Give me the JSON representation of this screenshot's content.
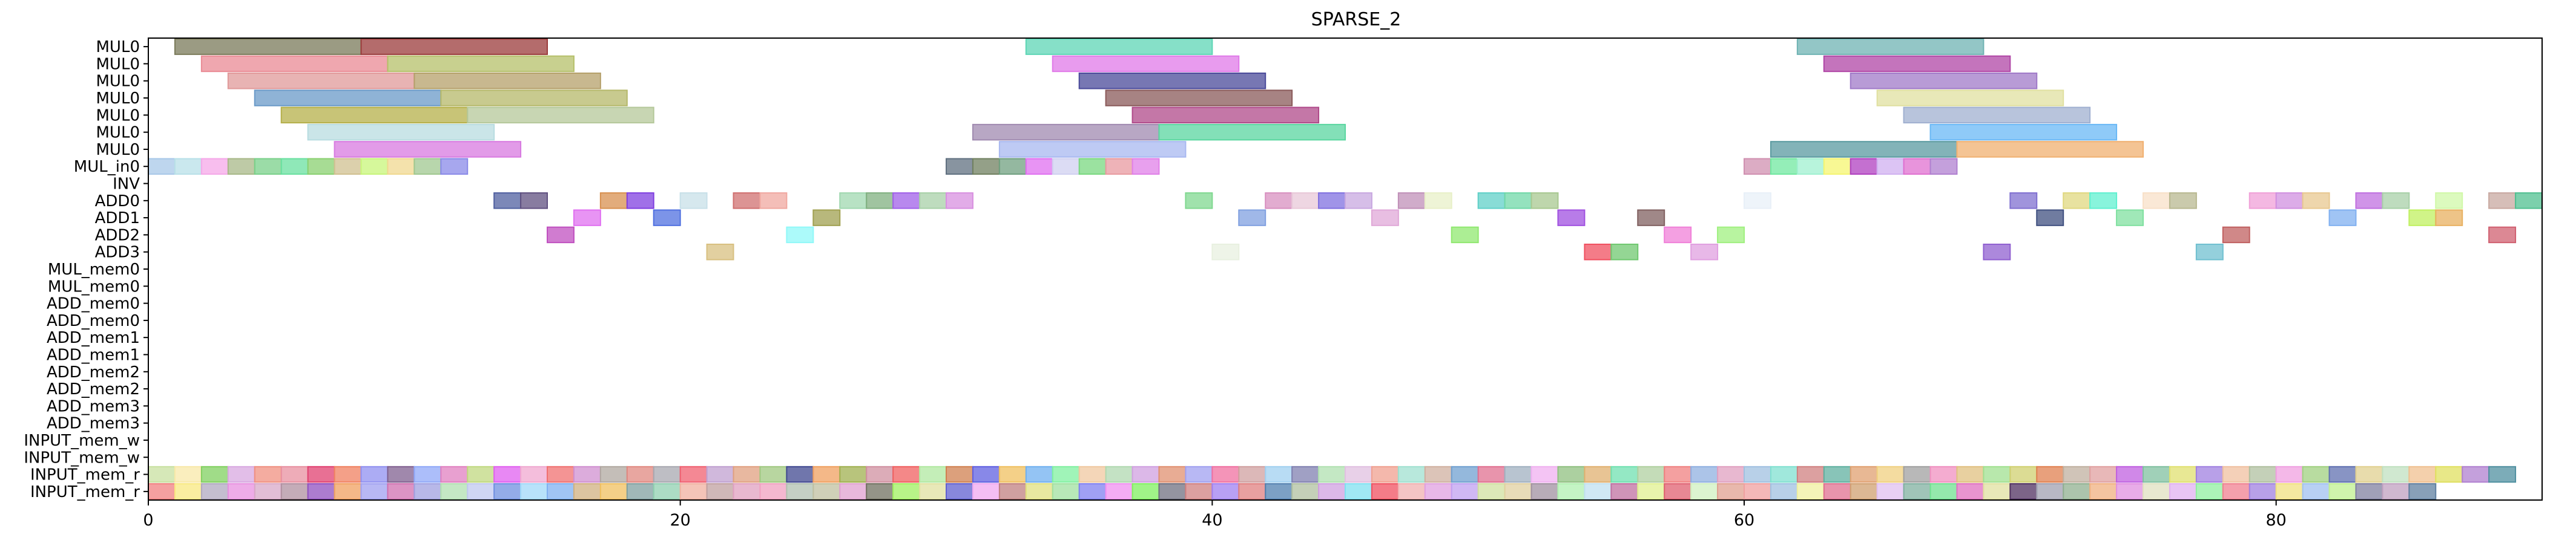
{
  "chart_data": {
    "type": "gantt",
    "title": "SPARSE_2",
    "xlim": [
      0,
      90
    ],
    "x_ticks": [
      0,
      20,
      40,
      60,
      80
    ],
    "x_tick_labels": [
      "0",
      "20",
      "40",
      "60",
      "80"
    ],
    "rows": [
      "MUL0",
      "MUL0",
      "MUL0",
      "MUL0",
      "MUL0",
      "MUL0",
      "MUL0",
      "MUL_in0",
      "INV",
      "ADD0",
      "ADD1",
      "ADD2",
      "ADD3",
      "MUL_mem0",
      "MUL_mem0",
      "ADD_mem0",
      "ADD_mem0",
      "ADD_mem1",
      "ADD_mem1",
      "ADD_mem2",
      "ADD_mem2",
      "ADD_mem3",
      "ADD_mem3",
      "INPUT_mem_w",
      "INPUT_mem_w",
      "INPUT_mem_r",
      "INPUT_mem_r"
    ],
    "tasks": [
      {
        "row": 0,
        "start": 1,
        "end": 8,
        "color": "#7a7a5a"
      },
      {
        "row": 0,
        "start": 8,
        "end": 15,
        "color": "#9b3b3b"
      },
      {
        "row": 0,
        "start": 33,
        "end": 40,
        "color": "#5dd6b5"
      },
      {
        "row": 0,
        "start": 62,
        "end": 69,
        "color": "#6fb3b3"
      },
      {
        "row": 1,
        "start": 2,
        "end": 9,
        "color": "#e98a94"
      },
      {
        "row": 1,
        "start": 9,
        "end": 16,
        "color": "#b5c06a"
      },
      {
        "row": 1,
        "start": 34,
        "end": 41,
        "color": "#e07ae8"
      },
      {
        "row": 1,
        "start": 63,
        "end": 70,
        "color": "#b046a6"
      },
      {
        "row": 2,
        "start": 3,
        "end": 10,
        "color": "#e09a9a"
      },
      {
        "row": 2,
        "start": 10,
        "end": 17,
        "color": "#b5a06a"
      },
      {
        "row": 2,
        "start": 35,
        "end": 42,
        "color": "#4a4a9a"
      },
      {
        "row": 2,
        "start": 64,
        "end": 71,
        "color": "#a07ac8"
      },
      {
        "row": 3,
        "start": 4,
        "end": 11,
        "color": "#6a9ac8"
      },
      {
        "row": 3,
        "start": 11,
        "end": 18,
        "color": "#b5b86a"
      },
      {
        "row": 3,
        "start": 36,
        "end": 43,
        "color": "#8a5a5a"
      },
      {
        "row": 3,
        "start": 65,
        "end": 72,
        "color": "#e0e0a0"
      },
      {
        "row": 4,
        "start": 5,
        "end": 12,
        "color": "#b5b04a"
      },
      {
        "row": 4,
        "start": 12,
        "end": 19,
        "color": "#b5c89a"
      },
      {
        "row": 4,
        "start": 37,
        "end": 44,
        "color": "#b04a8a"
      },
      {
        "row": 4,
        "start": 66,
        "end": 73,
        "color": "#a0b0d0"
      },
      {
        "row": 5,
        "start": 6,
        "end": 13,
        "color": "#b8dce0"
      },
      {
        "row": 5,
        "start": 31,
        "end": 38,
        "color": "#a08ab0"
      },
      {
        "row": 5,
        "start": 38,
        "end": 45,
        "color": "#5ad6a0"
      },
      {
        "row": 5,
        "start": 67,
        "end": 74,
        "color": "#6ab8f5"
      },
      {
        "row": 6,
        "start": 7,
        "end": 14,
        "color": "#d87ae0"
      },
      {
        "row": 6,
        "start": 32,
        "end": 39,
        "color": "#a8b8f0"
      },
      {
        "row": 6,
        "start": 61,
        "end": 68,
        "color": "#5a9aa0"
      },
      {
        "row": 6,
        "start": 68,
        "end": 75,
        "color": "#f0b070"
      },
      {
        "row": 7,
        "start": 0,
        "end": 1,
        "color": "#a8c8e8"
      },
      {
        "row": 7,
        "start": 1,
        "end": 2,
        "color": "#b8e0e8"
      },
      {
        "row": 7,
        "start": 2,
        "end": 3,
        "color": "#f5a8e8"
      },
      {
        "row": 7,
        "start": 3,
        "end": 4,
        "color": "#a8b888"
      },
      {
        "row": 7,
        "start": 4,
        "end": 5,
        "color": "#7ad08a"
      },
      {
        "row": 7,
        "start": 5,
        "end": 6,
        "color": "#6ae0a0"
      },
      {
        "row": 7,
        "start": 6,
        "end": 7,
        "color": "#8ad070"
      },
      {
        "row": 7,
        "start": 7,
        "end": 8,
        "color": "#d0c090"
      },
      {
        "row": 7,
        "start": 8,
        "end": 9,
        "color": "#c8f57a"
      },
      {
        "row": 7,
        "start": 9,
        "end": 10,
        "color": "#f0d890"
      },
      {
        "row": 7,
        "start": 10,
        "end": 11,
        "color": "#a0c890"
      },
      {
        "row": 7,
        "start": 11,
        "end": 12,
        "color": "#8a8ae8"
      },
      {
        "row": 7,
        "start": 30,
        "end": 31,
        "color": "#607080"
      },
      {
        "row": 7,
        "start": 31,
        "end": 32,
        "color": "#708060"
      },
      {
        "row": 7,
        "start": 32,
        "end": 33,
        "color": "#70a080"
      },
      {
        "row": 7,
        "start": 33,
        "end": 34,
        "color": "#e070f0"
      },
      {
        "row": 7,
        "start": 34,
        "end": 35,
        "color": "#d0d0f0"
      },
      {
        "row": 7,
        "start": 35,
        "end": 36,
        "color": "#7ad880"
      },
      {
        "row": 7,
        "start": 36,
        "end": 37,
        "color": "#e89aa0"
      },
      {
        "row": 7,
        "start": 37,
        "end": 38,
        "color": "#e080e8"
      },
      {
        "row": 7,
        "start": 60,
        "end": 61,
        "color": "#d090b0"
      },
      {
        "row": 7,
        "start": 61,
        "end": 62,
        "color": "#70e8a0"
      },
      {
        "row": 7,
        "start": 62,
        "end": 63,
        "color": "#a0f0d0"
      },
      {
        "row": 7,
        "start": 63,
        "end": 64,
        "color": "#f5f570"
      },
      {
        "row": 7,
        "start": 64,
        "end": 65,
        "color": "#b040c0"
      },
      {
        "row": 7,
        "start": 65,
        "end": 66,
        "color": "#d0b0f0"
      },
      {
        "row": 7,
        "start": 66,
        "end": 67,
        "color": "#e070d0"
      },
      {
        "row": 7,
        "start": 67,
        "end": 68,
        "color": "#b080d0"
      },
      {
        "row": 9,
        "start": 13,
        "end": 14,
        "color": "#5060a0"
      },
      {
        "row": 9,
        "start": 14,
        "end": 15,
        "color": "#605080"
      },
      {
        "row": 9,
        "start": 17,
        "end": 18,
        "color": "#d89050"
      },
      {
        "row": 9,
        "start": 18,
        "end": 19,
        "color": "#8040e0"
      },
      {
        "row": 9,
        "start": 20,
        "end": 21,
        "color": "#c8e0e8"
      },
      {
        "row": 9,
        "start": 22,
        "end": 23,
        "color": "#d07070"
      },
      {
        "row": 9,
        "start": 23,
        "end": 24,
        "color": "#f0a8a0"
      },
      {
        "row": 9,
        "start": 26,
        "end": 27,
        "color": "#a0d8b0"
      },
      {
        "row": 9,
        "start": 27,
        "end": 28,
        "color": "#80b080"
      },
      {
        "row": 9,
        "start": 28,
        "end": 29,
        "color": "#a060e8"
      },
      {
        "row": 9,
        "start": 29,
        "end": 30,
        "color": "#a8d0a8"
      },
      {
        "row": 9,
        "start": 30,
        "end": 31,
        "color": "#d890e0"
      },
      {
        "row": 9,
        "start": 39,
        "end": 40,
        "color": "#80d890"
      },
      {
        "row": 9,
        "start": 42,
        "end": 43,
        "color": "#d890c0"
      },
      {
        "row": 9,
        "start": 43,
        "end": 44,
        "color": "#e8c8d8"
      },
      {
        "row": 9,
        "start": 44,
        "end": 45,
        "color": "#8070e0"
      },
      {
        "row": 9,
        "start": 45,
        "end": 46,
        "color": "#c8a8e0"
      },
      {
        "row": 9,
        "start": 47,
        "end": 48,
        "color": "#c090b8"
      },
      {
        "row": 9,
        "start": 48,
        "end": 49,
        "color": "#e8f0c8"
      },
      {
        "row": 9,
        "start": 50,
        "end": 51,
        "color": "#60d0c8"
      },
      {
        "row": 9,
        "start": 51,
        "end": 52,
        "color": "#70d8a8"
      },
      {
        "row": 9,
        "start": 52,
        "end": 53,
        "color": "#a8c890"
      },
      {
        "row": 9,
        "start": 60,
        "end": 61,
        "color": "#e8f0f8"
      },
      {
        "row": 9,
        "start": 70,
        "end": 71,
        "color": "#8070d0"
      },
      {
        "row": 9,
        "start": 72,
        "end": 73,
        "color": "#e0d880"
      },
      {
        "row": 9,
        "start": 73,
        "end": 74,
        "color": "#60f0d0"
      },
      {
        "row": 9,
        "start": 75,
        "end": 76,
        "color": "#f8e0c8"
      },
      {
        "row": 9,
        "start": 76,
        "end": 77,
        "color": "#b8b890"
      },
      {
        "row": 9,
        "start": 79,
        "end": 80,
        "color": "#f0a0d8"
      },
      {
        "row": 9,
        "start": 80,
        "end": 81,
        "color": "#d090e0"
      },
      {
        "row": 9,
        "start": 81,
        "end": 82,
        "color": "#e8c890"
      },
      {
        "row": 9,
        "start": 83,
        "end": 84,
        "color": "#c070e0"
      },
      {
        "row": 9,
        "start": 84,
        "end": 85,
        "color": "#a8d0a8"
      },
      {
        "row": 9,
        "start": 86,
        "end": 87,
        "color": "#d0f8a8"
      },
      {
        "row": 9,
        "start": 88,
        "end": 89,
        "color": "#c8a8a0"
      },
      {
        "row": 9,
        "start": 89,
        "end": 90,
        "color": "#50c090"
      },
      {
        "row": 10,
        "start": 16,
        "end": 17,
        "color": "#e070f0"
      },
      {
        "row": 10,
        "start": 19,
        "end": 20,
        "color": "#5070e0"
      },
      {
        "row": 10,
        "start": 25,
        "end": 26,
        "color": "#a0a050"
      },
      {
        "row": 10,
        "start": 41,
        "end": 42,
        "color": "#80a0e0"
      },
      {
        "row": 10,
        "start": 46,
        "end": 47,
        "color": "#e0a8d8"
      },
      {
        "row": 10,
        "start": 53,
        "end": 54,
        "color": "#a050e0"
      },
      {
        "row": 10,
        "start": 56,
        "end": 57,
        "color": "#806060"
      },
      {
        "row": 10,
        "start": 71,
        "end": 72,
        "color": "#405080"
      },
      {
        "row": 10,
        "start": 74,
        "end": 75,
        "color": "#80e0a0"
      },
      {
        "row": 10,
        "start": 82,
        "end": 83,
        "color": "#80b0f0"
      },
      {
        "row": 10,
        "start": 85,
        "end": 86,
        "color": "#c0f060"
      },
      {
        "row": 10,
        "start": 86,
        "end": 87,
        "color": "#e8b060"
      },
      {
        "row": 11,
        "start": 15,
        "end": 16,
        "color": "#c050c0"
      },
      {
        "row": 11,
        "start": 24,
        "end": 25,
        "color": "#90f8f8"
      },
      {
        "row": 11,
        "start": 49,
        "end": 50,
        "color": "#90e870"
      },
      {
        "row": 11,
        "start": 57,
        "end": 58,
        "color": "#f080d8"
      },
      {
        "row": 11,
        "start": 59,
        "end": 60,
        "color": "#a0f080"
      },
      {
        "row": 11,
        "start": 78,
        "end": 79,
        "color": "#c06060"
      },
      {
        "row": 11,
        "start": 88,
        "end": 89,
        "color": "#d06070"
      },
      {
        "row": 12,
        "start": 21,
        "end": 22,
        "color": "#d8c080"
      },
      {
        "row": 12,
        "start": 40,
        "end": 41,
        "color": "#e8f0e0"
      },
      {
        "row": 12,
        "start": 54,
        "end": 55,
        "color": "#f05060"
      },
      {
        "row": 12,
        "start": 55,
        "end": 56,
        "color": "#70c870"
      },
      {
        "row": 12,
        "start": 58,
        "end": 59,
        "color": "#e0a0e0"
      },
      {
        "row": 12,
        "start": 69,
        "end": 70,
        "color": "#9060d0"
      },
      {
        "row": 12,
        "start": 77,
        "end": 78,
        "color": "#70c0d0"
      }
    ],
    "mem_r_colors_a": [
      "#c8e0a0",
      "#f8e8a8",
      "#80d060",
      "#d8a8e0",
      "#f09080",
      "#e890a0",
      "#e04070",
      "#f08060",
      "#9090f0",
      "#806090",
      "#90a8f8",
      "#e080c0",
      "#c0d880",
      "#e060f0",
      "#f0a8d0",
      "#f07070",
      "#d090d0",
      "#b0a8a0",
      "#e08880",
      "#a8a8b0",
      "#f06070",
      "#c0a0d0",
      "#e0a080",
      "#a0c880",
      "#404890",
      "#f0a060",
      "#a0b050",
      "#d090a0",
      "#f06060",
      "#b0e8a0",
      "#d08050",
      "#6060e0",
      "#f0c060",
      "#70b0f0",
      "#80f0a0",
      "#f0c8a0",
      "#b0d8b0",
      "#d0a0e0",
      "#e09070",
      "#a0a0f0",
      "#f070a0",
      "#d0a0a0",
      "#a0d0f0",
      "#8080b0",
      "#b0e0b0",
      "#e0c0e0",
      "#f0a090",
      "#a0e0d0",
      "#d0b0a0",
      "#70a0d0",
      "#e07090",
      "#a0b0c0",
      "#f0b0f0",
      "#90c080",
      "#e0b070",
      "#70e0b0",
      "#b0d0a0",
      "#f08080",
      "#90b0e0",
      "#e0a0c0",
      "#a0c0e0",
      "#80e0d0",
      "#d08080",
      "#60b0a0",
      "#e0a070",
      "#f0d080",
      "#a0a0a0",
      "#f090c0",
      "#e0c080",
      "#a0e090",
      "#d0d070",
      "#e08050",
      "#c0b0a0",
      "#e0a0a0",
      "#c060e0",
      "#80c0a0",
      "#e0e070",
      "#a080e0",
      "#f0c0a0",
      "#b0c0a0",
      "#f0a0e0",
      "#a0d080",
      "#6070b0",
      "#e0d090",
      "#c0e0c0",
      "#f0c090",
      "#e0e060",
      "#b080d0",
      "#5090a0"
    ],
    "mem_r_colors_b": [
      "#f08080",
      "#f8e880",
      "#b0a8c0",
      "#e890e0",
      "#d8a8c8",
      "#b090a0",
      "#9050c0",
      "#f0a060",
      "#a0a0f0",
      "#d070b0",
      "#a0a0e0",
      "#b0e0b0",
      "#c0c8f0",
      "#7090e0",
      "#a0d8f8",
      "#80b0f0",
      "#d0b080",
      "#f0c060",
      "#80a0a0",
      "#90d0b0",
      "#f0b0a0",
      "#c0a0a0",
      "#e0a0c0",
      "#f0a0c0",
      "#b0c0b0",
      "#c0c0a0",
      "#e0a0d0",
      "#707060",
      "#a0f060",
      "#e0e0a0",
      "#6060d0",
      "#f0a8f0",
      "#c08080",
      "#e0e080",
      "#a0e0a0",
      "#8080f0",
      "#f090f0",
      "#80f060",
      "#707080",
      "#d08080",
      "#a080f0",
      "#e08080",
      "#5080b0",
      "#b0c0a0",
      "#d0a0e0",
      "#80e0f0",
      "#f05060",
      "#f0b0b0",
      "#e0a0e0",
      "#c0a0f0",
      "#d0e0a0",
      "#e0d0a0",
      "#a090a0",
      "#b0f0b0",
      "#c0e0f0",
      "#c070a0",
      "#e0f090",
      "#e06070",
      "#d0f0c0",
      "#e0a090",
      "#f0a0a0",
      "#a0c0e0",
      "#f0f0a0",
      "#e07090",
      "#d0a070",
      "#e0c0f0",
      "#80b0a0",
      "#70e090",
      "#e070c0",
      "#e0e0a0",
      "#503060",
      "#a0a0b0",
      "#90b090",
      "#f0b080",
      "#e090e0",
      "#e0e0c0",
      "#e0b0f0",
      "#90f0a0",
      "#f08090",
      "#a080e0",
      "#f0e080",
      "#a0c0f0",
      "#c0f090",
      "#8080a0",
      "#c0a0c0",
      "#6080a0"
    ]
  }
}
